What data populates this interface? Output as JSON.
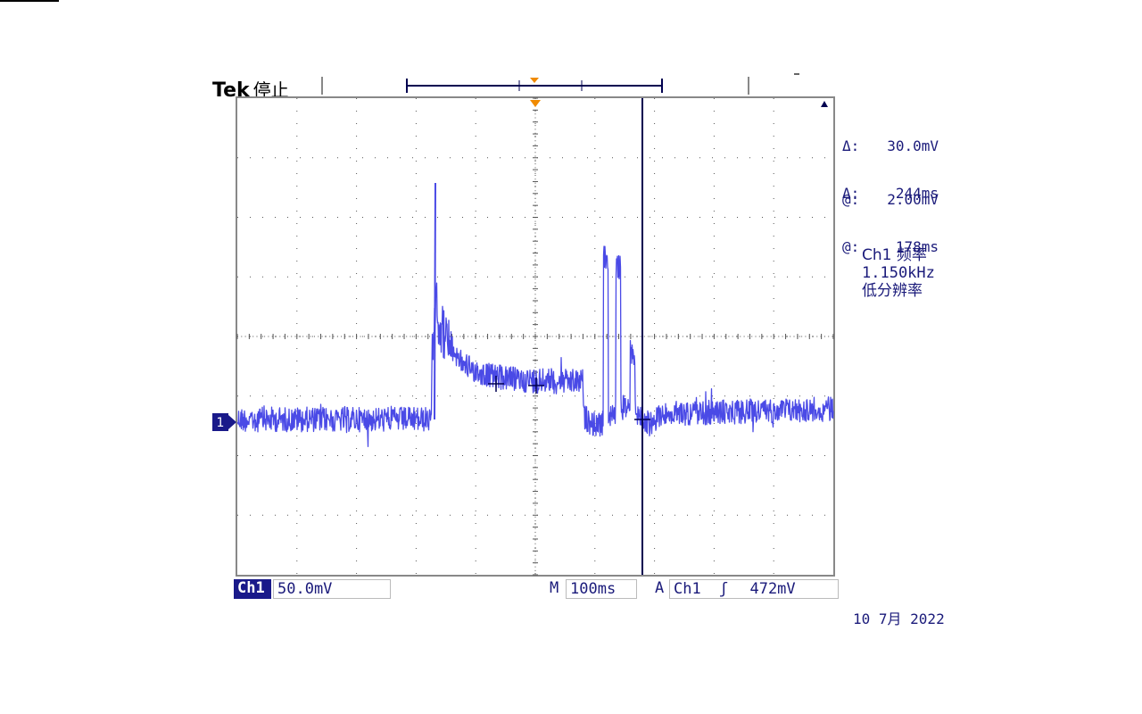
{
  "header": {
    "brand": "Tek",
    "state": "停止"
  },
  "cursor_readouts": {
    "voltage": {
      "delta_symbol": "Δ:",
      "delta_value": "30.0mV",
      "at_symbol": "@:",
      "at_value": "2.00mV"
    },
    "time": {
      "delta_symbol": "Δ:",
      "delta_value": "244ms",
      "at_symbol": "@:",
      "at_value": "178ms"
    }
  },
  "measurement": {
    "channel_label": "Ch1 频率",
    "value": "1.150kHz",
    "note": "低分辨率"
  },
  "bottom_bar": {
    "channel": "Ch1",
    "volts_per_div": "50.0mV",
    "m_label": "M",
    "time_per_div": "100ms",
    "a_label": "A",
    "trigger_source": "Ch1",
    "trigger_slope": "ʃ",
    "trigger_level": "472mV"
  },
  "channel_marker": "1",
  "date_partial": "10 7月 2022",
  "colors": {
    "trace": "#4a4ae6",
    "cursor": "#000050",
    "trigger_marker": "#f08a00",
    "grid": "#555555",
    "text": "#1a1a7a",
    "channel_tag": "#1a1a8a"
  }
}
